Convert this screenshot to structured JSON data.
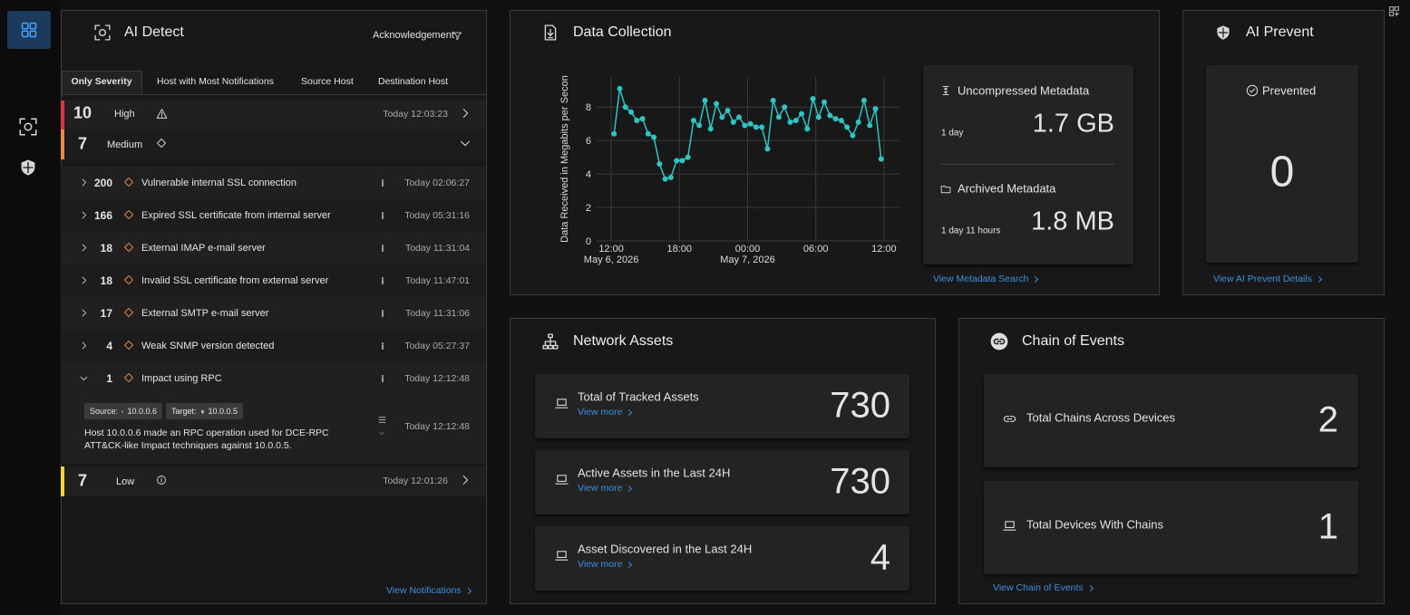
{
  "ai_detect": {
    "title": "AI Detect",
    "filter": "Acknowledgement",
    "tabs": [
      "Only Severity",
      "Host with Most Notifications",
      "Source Host",
      "Destination Host"
    ],
    "high": {
      "count": 10,
      "label": "High",
      "time": "Today 12:03:23"
    },
    "medium": {
      "count": 7,
      "label": "Medium"
    },
    "items": [
      {
        "count": 200,
        "name": "Vulnerable internal SSL connection",
        "time": "Today 02:06:27"
      },
      {
        "count": 166,
        "name": "Expired SSL certificate from internal server",
        "time": "Today 05:31:16"
      },
      {
        "count": 18,
        "name": "External IMAP e-mail server",
        "time": "Today 11:31:04"
      },
      {
        "count": 18,
        "name": "Invalid SSL certificate from external server",
        "time": "Today 11:47:01"
      },
      {
        "count": 17,
        "name": "External SMTP e-mail server",
        "time": "Today 11:31:06"
      },
      {
        "count": 4,
        "name": "Weak SNMP version detected",
        "time": "Today 05:27:37"
      },
      {
        "count": 1,
        "name": "Impact using RPC",
        "time": "Today 12:12:48"
      }
    ],
    "detail": {
      "source_label": "Source:",
      "source": "10.0.0.6",
      "target_label": "Target:",
      "target": "10.0.0.5",
      "description": "Host 10.0.0.6 made an RPC operation used for DCE-RPC ATT&CK-like Impact techniques against 10.0.0.5.",
      "time": "Today 12:12:48"
    },
    "low": {
      "count": 7,
      "label": "Low",
      "time": "Today 12:01:26"
    },
    "link": "View Notifications"
  },
  "data_collection": {
    "title": "Data Collection",
    "chart": {
      "type": "line",
      "y_label": "Data Received in Megabits per Secon",
      "color": "#2ec4c4",
      "grid": true,
      "x": [
        "2026-05-06T12:15",
        "2026-05-06T12:45",
        "2026-05-06T13:15",
        "2026-05-06T13:45",
        "2026-05-06T14:15",
        "2026-05-06T14:45",
        "2026-05-06T15:15",
        "2026-05-06T15:45",
        "2026-05-06T16:15",
        "2026-05-06T16:45",
        "2026-05-06T17:15",
        "2026-05-06T17:45",
        "2026-05-06T18:15",
        "2026-05-06T18:45",
        "2026-05-06T19:15",
        "2026-05-06T19:45",
        "2026-05-06T20:15",
        "2026-05-06T20:45",
        "2026-05-06T21:15",
        "2026-05-06T21:45",
        "2026-05-06T22:15",
        "2026-05-06T22:45",
        "2026-05-06T23:15",
        "2026-05-06T23:45",
        "2026-05-07T00:15",
        "2026-05-07T00:45",
        "2026-05-07T01:15",
        "2026-05-07T01:45",
        "2026-05-07T02:15",
        "2026-05-07T02:45",
        "2026-05-07T03:15",
        "2026-05-07T03:45",
        "2026-05-07T04:15",
        "2026-05-07T04:45",
        "2026-05-07T05:15",
        "2026-05-07T05:45",
        "2026-05-07T06:15",
        "2026-05-07T06:45",
        "2026-05-07T07:15",
        "2026-05-07T07:45",
        "2026-05-07T08:15",
        "2026-05-07T08:45",
        "2026-05-07T09:15",
        "2026-05-07T09:45",
        "2026-05-07T10:15",
        "2026-05-07T10:45",
        "2026-05-07T11:15",
        "2026-05-07T11:45"
      ],
      "values": [
        6.4,
        9.1,
        8.0,
        7.7,
        7.2,
        7.3,
        6.4,
        6.2,
        4.6,
        3.7,
        3.8,
        4.8,
        4.8,
        5.0,
        7.2,
        6.9,
        8.4,
        6.7,
        8.2,
        7.4,
        7.8,
        7.1,
        7.4,
        6.9,
        7.0,
        6.8,
        6.8,
        5.5,
        8.4,
        7.4,
        8.0,
        7.1,
        7.2,
        7.6,
        6.7,
        8.5,
        7.4,
        8.3,
        7.5,
        7.3,
        7.2,
        6.8,
        6.3,
        7.1,
        8.4,
        6.9,
        7.9,
        4.9
      ],
      "xlim": [
        "2026-05-06T10:43",
        "2026-05-07T13:22"
      ],
      "xticks": [
        {
          "value": "2026-05-06T12:00",
          "label": "12:00"
        },
        {
          "value": "2026-05-06T18:00",
          "label": "18:00"
        },
        {
          "value": "2026-05-07T00:00",
          "label": "00:00"
        },
        {
          "value": "2026-05-07T06:00",
          "label": "06:00"
        },
        {
          "value": "2026-05-07T12:00",
          "label": "12:00"
        }
      ],
      "xtick_dates": [
        {
          "value": "2026-05-06T12:00",
          "label": "May 6, 2026"
        },
        {
          "value": "2026-05-07T00:00",
          "label": "May 7, 2026"
        }
      ],
      "ylim": [
        0,
        9.8
      ],
      "yticks": [
        0,
        2,
        4,
        6,
        8
      ]
    },
    "uncompressed": {
      "label": "Uncompressed Metadata",
      "period": "1 day",
      "value": "1.7 GB"
    },
    "archived": {
      "label": "Archived Metadata",
      "period": "1 day 11 hours",
      "value": "1.8 MB"
    },
    "link": "View Metadata Search"
  },
  "ai_prevent": {
    "title": "AI Prevent",
    "label": "Prevented",
    "value": 0,
    "link": "View AI Prevent Details"
  },
  "network_assets": {
    "title": "Network Assets",
    "cards": [
      {
        "label": "Total of Tracked Assets",
        "link": "View more",
        "value": 730
      },
      {
        "label": "Active Assets in the Last 24H",
        "link": "View more",
        "value": 730
      },
      {
        "label": "Asset Discovered in the Last 24H",
        "link": "View more",
        "value": 4
      }
    ]
  },
  "chain_of_events": {
    "title": "Chain of Events",
    "cards": [
      {
        "label": "Total Chains Across Devices",
        "value": 2
      },
      {
        "label": "Total Devices With Chains",
        "value": 1
      }
    ],
    "link": "View Chain of Events"
  }
}
